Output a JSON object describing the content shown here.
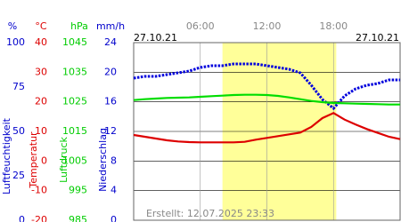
{
  "chart_data": {
    "type": "line",
    "date_left": "27.10.21",
    "date_right": "27.10.21",
    "footer": "Erstellt: 12.07.2025 23:33",
    "xlim": [
      0,
      24
    ],
    "xticks": [
      {
        "value": 6,
        "label": "06:00"
      },
      {
        "value": 12,
        "label": "12:00"
      },
      {
        "value": 18,
        "label": "18:00"
      }
    ],
    "shade_x": [
      8,
      18.25
    ],
    "shade_color": "#ffff99",
    "grid": true,
    "axes": [
      {
        "unit": "%",
        "name": "Luftfeuchtigkeit",
        "color": "#0000cc",
        "ylim": [
          0,
          100
        ],
        "yticks": [
          0,
          25,
          50,
          75,
          100
        ]
      },
      {
        "unit": "°C",
        "name": "Temperatur",
        "color": "#dd0000",
        "ylim": [
          -20,
          40
        ],
        "yticks": [
          -20,
          -10,
          0,
          10,
          20,
          30,
          40
        ]
      },
      {
        "unit": "hPa",
        "name": "Luftdruck",
        "color": "#00cc00",
        "ylim": [
          985,
          1045
        ],
        "yticks": [
          985,
          995,
          1005,
          1015,
          1025,
          1035,
          1045
        ]
      },
      {
        "unit": "mm/h",
        "name": "Niederschlag",
        "color": "#0000cc",
        "ylim": [
          0,
          24
        ],
        "yticks": [
          0,
          4,
          8,
          12,
          16,
          20,
          24
        ]
      }
    ],
    "x": [
      0,
      1,
      2,
      3,
      4,
      5,
      6,
      7,
      8,
      9,
      10,
      11,
      12,
      13,
      14,
      15,
      16,
      17,
      18,
      19,
      20,
      21,
      22,
      23,
      24
    ],
    "series": [
      {
        "axis": 0,
        "color": "#0000dd",
        "dotted": true,
        "values": [
          80,
          81,
          81,
          82,
          83,
          84,
          86,
          87,
          87,
          88,
          88,
          88,
          87,
          86,
          85,
          83,
          76,
          68,
          63,
          70,
          74,
          76,
          77,
          79,
          79
        ]
      },
      {
        "axis": 2,
        "color": "#00dd00",
        "dotted": false,
        "values": [
          1025.6,
          1025.9,
          1026.1,
          1026.3,
          1026.4,
          1026.5,
          1026.7,
          1026.9,
          1027.1,
          1027.3,
          1027.4,
          1027.4,
          1027.3,
          1027.0,
          1026.5,
          1025.9,
          1025.3,
          1024.9,
          1024.6,
          1024.5,
          1024.4,
          1024.3,
          1024.2,
          1024.1,
          1024.1
        ]
      },
      {
        "axis": 1,
        "color": "#dd0000",
        "dotted": false,
        "values": [
          8.8,
          8.2,
          7.6,
          7.0,
          6.6,
          6.4,
          6.3,
          6.3,
          6.3,
          6.3,
          6.5,
          7.2,
          7.8,
          8.4,
          9.0,
          9.6,
          11.5,
          14.5,
          16.2,
          14.0,
          12.3,
          10.8,
          9.5,
          8.2,
          7.4
        ]
      }
    ]
  }
}
